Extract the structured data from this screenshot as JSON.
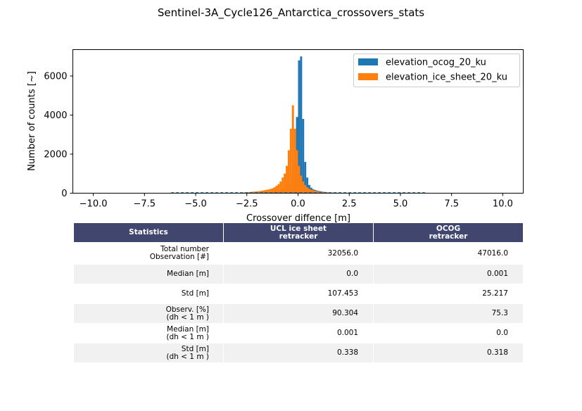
{
  "figure_title": "Sentinel-3A_Cycle126_Antarctica_crossovers_stats",
  "chart_data": {
    "type": "bar",
    "xlabel": "Crossover diffence [m]",
    "ylabel": "Number of counts [~]",
    "xlim": [
      -11,
      11
    ],
    "ylim": [
      0,
      7350
    ],
    "xticks": [
      -10.0,
      -7.5,
      -5.0,
      -2.5,
      0.0,
      2.5,
      5.0,
      7.5,
      10.0
    ],
    "xtick_labels": [
      "−10.0",
      "−7.5",
      "−5.0",
      "−2.5",
      "0.0",
      "2.5",
      "5.0",
      "7.5",
      "10.0"
    ],
    "yticks": [
      0,
      2000,
      4000,
      6000
    ],
    "ytick_labels": [
      "0",
      "2000",
      "4000",
      "6000"
    ],
    "grid": false,
    "legend_position": "top-right",
    "bin_width": 0.1,
    "bin_start": -1.3,
    "series": [
      {
        "name": "elevation_ocog_20_ku",
        "color": "#1f77b4",
        "bin_start": -1.3,
        "values": [
          70,
          90,
          110,
          140,
          170,
          210,
          260,
          330,
          430,
          580,
          900,
          1800,
          3900,
          6800,
          7000,
          3800,
          1600,
          800,
          420,
          280,
          200,
          160,
          130,
          110,
          90,
          70,
          60
        ]
      },
      {
        "name": "elevation_ice_sheet_20_ku",
        "color": "#ff7f0e",
        "bin_start": -2.8,
        "values": [
          30,
          35,
          40,
          50,
          60,
          70,
          80,
          90,
          100,
          110,
          130,
          150,
          170,
          190,
          220,
          250,
          300,
          380,
          470,
          600,
          800,
          1000,
          1400,
          2200,
          3300,
          4500,
          3300,
          2200,
          1400,
          900,
          600,
          420,
          300,
          230,
          180,
          150,
          120,
          100,
          80,
          70,
          60,
          50,
          45,
          40,
          35,
          30,
          28,
          25,
          22,
          20,
          18
        ]
      }
    ]
  },
  "table": {
    "headers": [
      "Statistics",
      "UCL ice sheet\nretracker",
      "OCOG\nretracker"
    ],
    "rows": [
      {
        "label": "Total number\nObservation [#]",
        "ucl": "32056.0",
        "ocog": "47016.0"
      },
      {
        "label": "Median [m]",
        "ucl": "0.0",
        "ocog": "0.001"
      },
      {
        "label": "Std [m]",
        "ucl": "107.453",
        "ocog": "25.217"
      },
      {
        "label": "Observ. [%]\n(dh < 1 m )",
        "ucl": "90.304",
        "ocog": "75.3"
      },
      {
        "label": "Median [m]\n(dh < 1 m )",
        "ucl": "0.001",
        "ocog": "0.0"
      },
      {
        "label": "Std [m]\n(dh < 1 m )",
        "ucl": "0.338",
        "ocog": "0.318"
      }
    ]
  }
}
